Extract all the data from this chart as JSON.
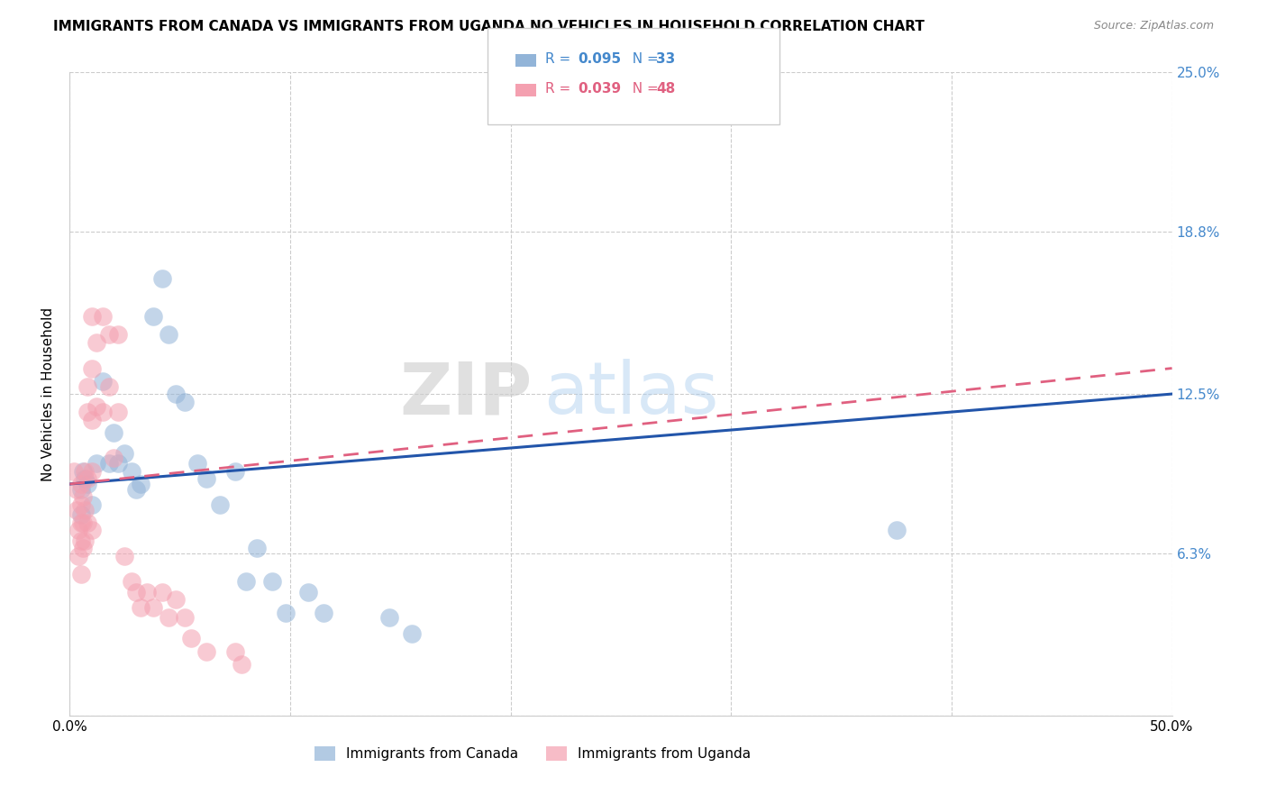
{
  "title": "IMMIGRANTS FROM CANADA VS IMMIGRANTS FROM UGANDA NO VEHICLES IN HOUSEHOLD CORRELATION CHART",
  "source": "Source: ZipAtlas.com",
  "ylabel": "No Vehicles in Household",
  "xlim": [
    0.0,
    0.5
  ],
  "ylim": [
    0.0,
    0.25
  ],
  "xticks": [
    0.0,
    0.1,
    0.2,
    0.3,
    0.4,
    0.5
  ],
  "xticklabels": [
    "0.0%",
    "",
    "",
    "",
    "",
    "50.0%"
  ],
  "yticks": [
    0.0,
    0.063,
    0.125,
    0.188,
    0.25
  ],
  "yticklabels": [
    "",
    "6.3%",
    "12.5%",
    "18.8%",
    "25.0%"
  ],
  "canada_R": 0.095,
  "canada_N": 33,
  "uganda_R": 0.039,
  "uganda_N": 48,
  "canada_color": "#92b4d8",
  "uganda_color": "#f4a0b0",
  "canada_line_color": "#2255aa",
  "uganda_line_color": "#e06080",
  "watermark_zip": "ZIP",
  "watermark_atlas": "atlas",
  "canada_x": [
    0.005,
    0.005,
    0.006,
    0.007,
    0.008,
    0.01,
    0.012,
    0.015,
    0.018,
    0.02,
    0.022,
    0.025,
    0.028,
    0.03,
    0.032,
    0.038,
    0.042,
    0.045,
    0.048,
    0.052,
    0.058,
    0.062,
    0.068,
    0.075,
    0.08,
    0.085,
    0.092,
    0.098,
    0.108,
    0.115,
    0.145,
    0.155,
    0.375
  ],
  "canada_y": [
    0.088,
    0.078,
    0.095,
    0.092,
    0.09,
    0.082,
    0.098,
    0.13,
    0.098,
    0.11,
    0.098,
    0.102,
    0.095,
    0.088,
    0.09,
    0.155,
    0.17,
    0.148,
    0.125,
    0.122,
    0.098,
    0.092,
    0.082,
    0.095,
    0.052,
    0.065,
    0.052,
    0.04,
    0.048,
    0.04,
    0.038,
    0.032,
    0.072
  ],
  "uganda_x": [
    0.002,
    0.003,
    0.003,
    0.004,
    0.004,
    0.005,
    0.005,
    0.005,
    0.005,
    0.005,
    0.006,
    0.006,
    0.006,
    0.007,
    0.007,
    0.007,
    0.008,
    0.008,
    0.008,
    0.008,
    0.01,
    0.01,
    0.01,
    0.01,
    0.01,
    0.012,
    0.012,
    0.015,
    0.015,
    0.018,
    0.018,
    0.02,
    0.022,
    0.022,
    0.025,
    0.028,
    0.03,
    0.032,
    0.035,
    0.038,
    0.042,
    0.045,
    0.048,
    0.052,
    0.055,
    0.062,
    0.075,
    0.078
  ],
  "uganda_y": [
    0.095,
    0.088,
    0.08,
    0.072,
    0.062,
    0.09,
    0.082,
    0.075,
    0.068,
    0.055,
    0.085,
    0.075,
    0.065,
    0.095,
    0.08,
    0.068,
    0.128,
    0.118,
    0.092,
    0.075,
    0.155,
    0.135,
    0.115,
    0.095,
    0.072,
    0.145,
    0.12,
    0.155,
    0.118,
    0.148,
    0.128,
    0.1,
    0.148,
    0.118,
    0.062,
    0.052,
    0.048,
    0.042,
    0.048,
    0.042,
    0.048,
    0.038,
    0.045,
    0.038,
    0.03,
    0.025,
    0.025,
    0.02
  ],
  "legend_canada_label": "R = 0.095   N = 33",
  "legend_uganda_label": "R = 0.039   N = 48",
  "bottom_legend_canada": "Immigrants from Canada",
  "bottom_legend_uganda": "Immigrants from Uganda"
}
